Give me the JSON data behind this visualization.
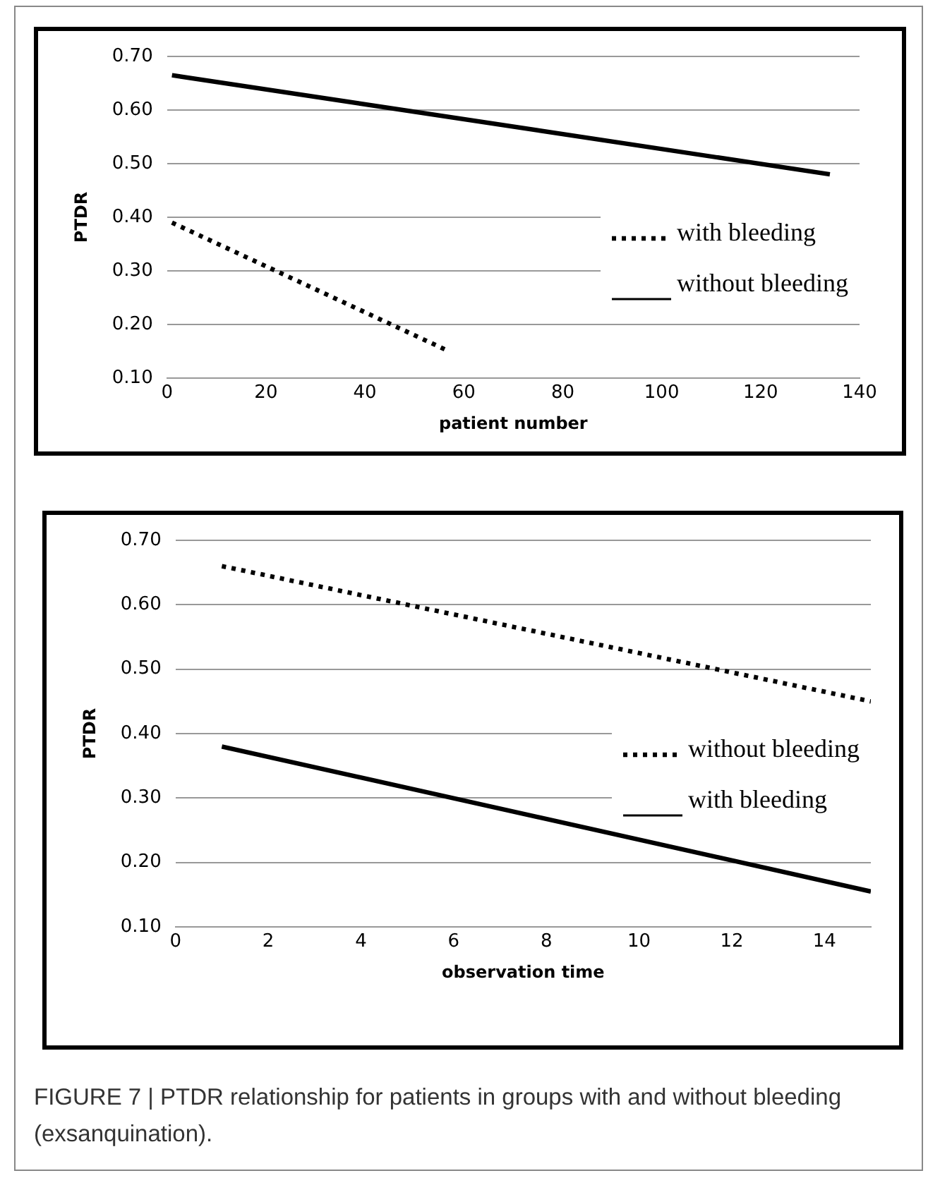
{
  "chart_data": [
    {
      "type": "line",
      "xlabel": "patient number",
      "ylabel": "PTDR",
      "xlim": [
        0,
        140
      ],
      "xticks": [
        0,
        20,
        40,
        60,
        80,
        100,
        120,
        140
      ],
      "ylim": [
        0.1,
        0.7
      ],
      "yticks": [
        {
          "value": 0.1,
          "label": "0.10"
        },
        {
          "value": 0.2,
          "label": "0.20"
        },
        {
          "value": 0.3,
          "label": "0.30"
        },
        {
          "value": 0.4,
          "label": "0.40"
        },
        {
          "value": 0.5,
          "label": "0.50"
        },
        {
          "value": 0.6,
          "label": "0.60"
        },
        {
          "value": 0.7,
          "label": "0.70"
        }
      ],
      "grid": "y",
      "legend": "right",
      "marker": "none",
      "series": [
        {
          "name": "with bleeding",
          "color": "#000000",
          "line_style": "dotted",
          "x": [
            1,
            57
          ],
          "values": [
            0.39,
            0.15
          ]
        },
        {
          "name": "without bleeding",
          "color": "#000000",
          "line_style": "solid",
          "x": [
            1,
            134
          ],
          "values": [
            0.665,
            0.48
          ]
        }
      ]
    },
    {
      "type": "line",
      "xlabel": "observation time",
      "ylabel": "PTDR",
      "xlim": [
        0,
        15
      ],
      "xticks": [
        0,
        2,
        4,
        6,
        8,
        10,
        12,
        14
      ],
      "ylim": [
        0.1,
        0.7
      ],
      "yticks": [
        {
          "value": 0.1,
          "label": "0.10"
        },
        {
          "value": 0.2,
          "label": "0.20"
        },
        {
          "value": 0.3,
          "label": "0.30"
        },
        {
          "value": 0.4,
          "label": "0.40"
        },
        {
          "value": 0.5,
          "label": "0.50"
        },
        {
          "value": 0.6,
          "label": "0.60"
        },
        {
          "value": 0.7,
          "label": "0.70"
        }
      ],
      "grid": "y",
      "legend": "right",
      "marker": "none",
      "annotations": [
        "FIGURE 7 | PTDR relationship for patients in groups with and without bleeding (exsanquination)."
      ],
      "series": [
        {
          "name": "without bleeding",
          "color": "#000000",
          "line_style": "dotted",
          "x": [
            1,
            15
          ],
          "values": [
            0.66,
            0.45
          ]
        },
        {
          "name": "with bleeding",
          "color": "#000000",
          "line_style": "solid",
          "x": [
            1,
            15
          ],
          "values": [
            0.38,
            0.155
          ]
        }
      ]
    }
  ]
}
